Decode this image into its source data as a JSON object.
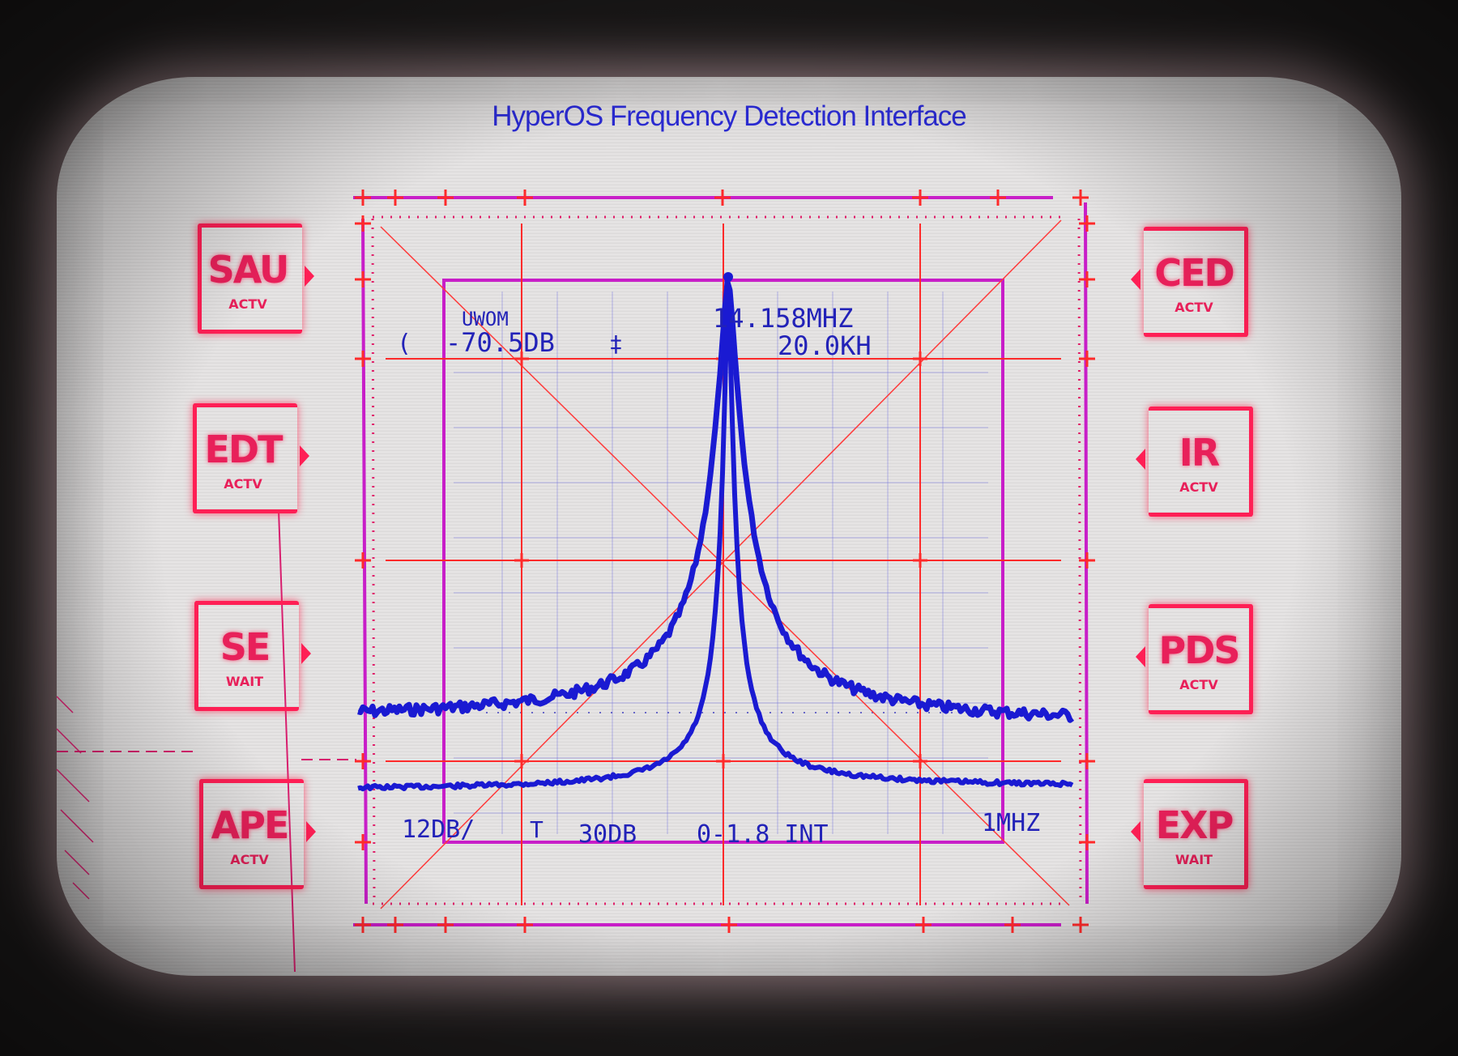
{
  "title": "HyperOS Frequency Detection Interface",
  "left_buttons": [
    {
      "label": "SAU",
      "status": "ACTV"
    },
    {
      "label": "EDT",
      "status": "ACTV"
    },
    {
      "label": "SE",
      "status": "WAIT"
    },
    {
      "label": "APE",
      "status": "ACTV"
    }
  ],
  "right_buttons": [
    {
      "label": "CED",
      "status": "ACTV"
    },
    {
      "label": "IR",
      "status": "ACTV"
    },
    {
      "label": "PDS",
      "status": "ACTV"
    },
    {
      "label": "EXP",
      "status": "WAIT"
    }
  ],
  "readouts": {
    "mode": "UWOM",
    "level": "-70.5DB",
    "center_freq": "14.158MHZ",
    "span": "20.0KH",
    "scale": "12DB/",
    "attenuation": "30DB",
    "range": "0-1.8 INT",
    "bandwidth": "1MHZ"
  },
  "colors": {
    "grid": "#ff2a2a",
    "frame": "#c81ec8",
    "trace": "#1a1ad2",
    "button": "#ff1f55"
  }
}
